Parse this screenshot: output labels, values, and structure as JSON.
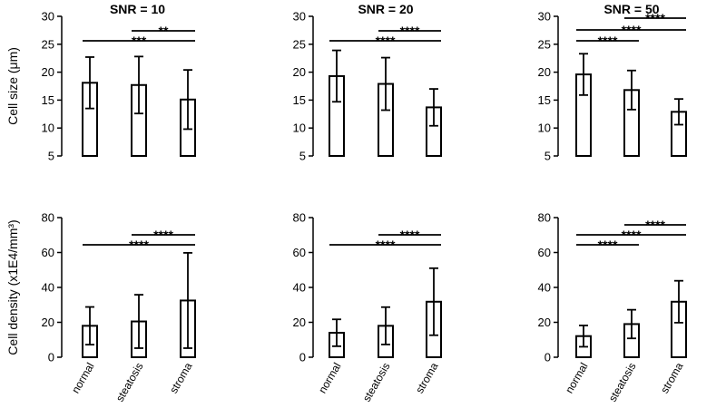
{
  "chart_data": [
    {
      "type": "bar",
      "title": "SNR = 10",
      "ylabel": "Cell size (μm)",
      "ylim": [
        5,
        30
      ],
      "yticks": [
        5,
        10,
        15,
        20,
        25,
        30
      ],
      "categories": [
        "normal",
        "steatosis",
        "stroma"
      ],
      "values": [
        18.1,
        17.7,
        15.1
      ],
      "errors": [
        4.6,
        5.1,
        5.3
      ],
      "significance": [
        {
          "from": 1,
          "to": 2,
          "label": "**"
        },
        {
          "from": 0,
          "to": 2,
          "label": "***"
        }
      ]
    },
    {
      "type": "bar",
      "title": "SNR = 20",
      "ylabel": "",
      "ylim": [
        5,
        30
      ],
      "yticks": [
        5,
        10,
        15,
        20,
        25,
        30
      ],
      "categories": [
        "normal",
        "steatosis",
        "stroma"
      ],
      "values": [
        19.3,
        17.9,
        13.7
      ],
      "errors": [
        4.6,
        4.7,
        3.3
      ],
      "significance": [
        {
          "from": 1,
          "to": 2,
          "label": "****"
        },
        {
          "from": 0,
          "to": 2,
          "label": "****"
        }
      ]
    },
    {
      "type": "bar",
      "title": "SNR = 50",
      "ylabel": "",
      "ylim": [
        5,
        30
      ],
      "yticks": [
        5,
        10,
        15,
        20,
        25,
        30
      ],
      "categories": [
        "normal",
        "steatosis",
        "stroma"
      ],
      "values": [
        19.6,
        16.8,
        12.9
      ],
      "errors": [
        3.7,
        3.5,
        2.3
      ],
      "significance": [
        {
          "from": 1,
          "to": 2,
          "label": "****"
        },
        {
          "from": 0,
          "to": 2,
          "label": "****"
        },
        {
          "from": 0,
          "to": 1,
          "label": "****"
        }
      ]
    },
    {
      "type": "bar",
      "title": "",
      "ylabel": "Cell density (x1E4/mm³)",
      "ylim": [
        0,
        80
      ],
      "yticks": [
        0,
        20,
        40,
        60,
        80
      ],
      "categories": [
        "normal",
        "steatosis",
        "stroma"
      ],
      "values": [
        18,
        20.5,
        32.5
      ],
      "errors": [
        10.8,
        15.3,
        27.3
      ],
      "significance": [
        {
          "from": 1,
          "to": 2,
          "label": "****"
        },
        {
          "from": 0,
          "to": 2,
          "label": "****"
        }
      ]
    },
    {
      "type": "bar",
      "title": "",
      "ylabel": "",
      "ylim": [
        0,
        80
      ],
      "yticks": [
        0,
        20,
        40,
        60,
        80
      ],
      "categories": [
        "normal",
        "steatosis",
        "stroma"
      ],
      "values": [
        14,
        18,
        31.8
      ],
      "errors": [
        7.7,
        10.7,
        19.2
      ],
      "significance": [
        {
          "from": 1,
          "to": 2,
          "label": "****"
        },
        {
          "from": 0,
          "to": 2,
          "label": "****"
        }
      ]
    },
    {
      "type": "bar",
      "title": "",
      "ylabel": "",
      "ylim": [
        0,
        80
      ],
      "yticks": [
        0,
        20,
        40,
        60,
        80
      ],
      "categories": [
        "normal",
        "steatosis",
        "stroma"
      ],
      "values": [
        12.1,
        19,
        31.8
      ],
      "errors": [
        6.1,
        8.2,
        12
      ],
      "significance": [
        {
          "from": 1,
          "to": 2,
          "label": "****"
        },
        {
          "from": 0,
          "to": 2,
          "label": "****"
        },
        {
          "from": 0,
          "to": 1,
          "label": "****"
        }
      ]
    }
  ]
}
